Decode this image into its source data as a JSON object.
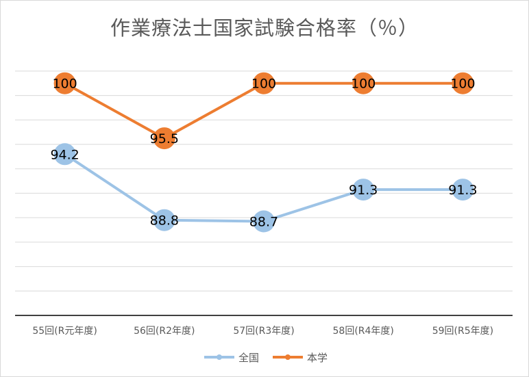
{
  "chart_data": {
    "type": "line",
    "title": "作業療法士国家試験合格率（％）",
    "categories": [
      "55回(R元年度)",
      "56回(R2年度)",
      "57回(R3年度)",
      "58回(R4年度)",
      "59回(R5年度)"
    ],
    "series": [
      {
        "name": "全国",
        "values": [
          94.2,
          88.8,
          88.7,
          91.3,
          91.3
        ],
        "color": "#9dc3e6"
      },
      {
        "name": "本学",
        "values": [
          100,
          95.5,
          100,
          100,
          100
        ],
        "color": "#ed7d31"
      }
    ],
    "ylim": [
      81,
      102
    ],
    "grid": true,
    "legend": "bottom"
  }
}
